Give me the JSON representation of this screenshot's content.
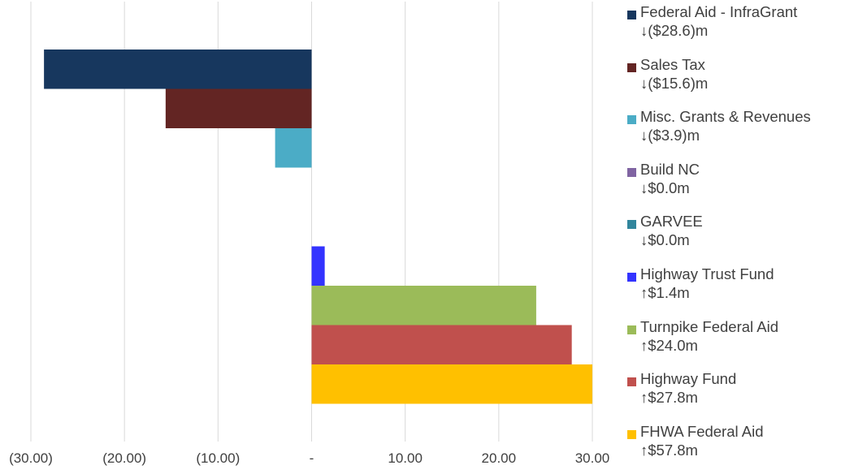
{
  "chart_data": {
    "type": "bar",
    "orientation": "horizontal",
    "xlim": [
      -30,
      30
    ],
    "x_ticks": [
      "(30.00)",
      "(20.00)",
      "(10.00)",
      "-",
      "10.00",
      "20.00",
      "30.00"
    ],
    "x_tick_values": [
      -30,
      -20,
      -10,
      0,
      10,
      20,
      30
    ],
    "grid": "vertical",
    "legend_position": "right",
    "series": [
      {
        "name": "Federal Aid - InfraGrant",
        "value": -28.6,
        "change_label": "↓($28.6)m",
        "color": "#17375e"
      },
      {
        "name": "Sales Tax",
        "value": -15.6,
        "change_label": "↓($15.6)m",
        "color": "#632523"
      },
      {
        "name": "Misc. Grants & Revenues",
        "value": -3.9,
        "change_label": "↓($3.9)m",
        "color": "#4bacc6"
      },
      {
        "name": "Build NC",
        "value": 0.0,
        "change_label": "↓$0.0m",
        "color": "#8064a2"
      },
      {
        "name": "GARVEE",
        "value": 0.0,
        "change_label": "↓$0.0m",
        "color": "#31859c"
      },
      {
        "name": "Highway Trust Fund",
        "value": 1.4,
        "change_label": "↑$1.4m",
        "color": "#3333ff"
      },
      {
        "name": "Turnpike Federal Aid",
        "value": 24.0,
        "change_label": "↑$24.0m",
        "color": "#9bbb59"
      },
      {
        "name": "Highway Fund",
        "value": 27.8,
        "change_label": "↑$27.8m",
        "color": "#c0504d"
      },
      {
        "name": "FHWA Federal Aid",
        "value": 57.8,
        "change_label": "↑$57.8m",
        "color": "#ffc000"
      }
    ]
  }
}
